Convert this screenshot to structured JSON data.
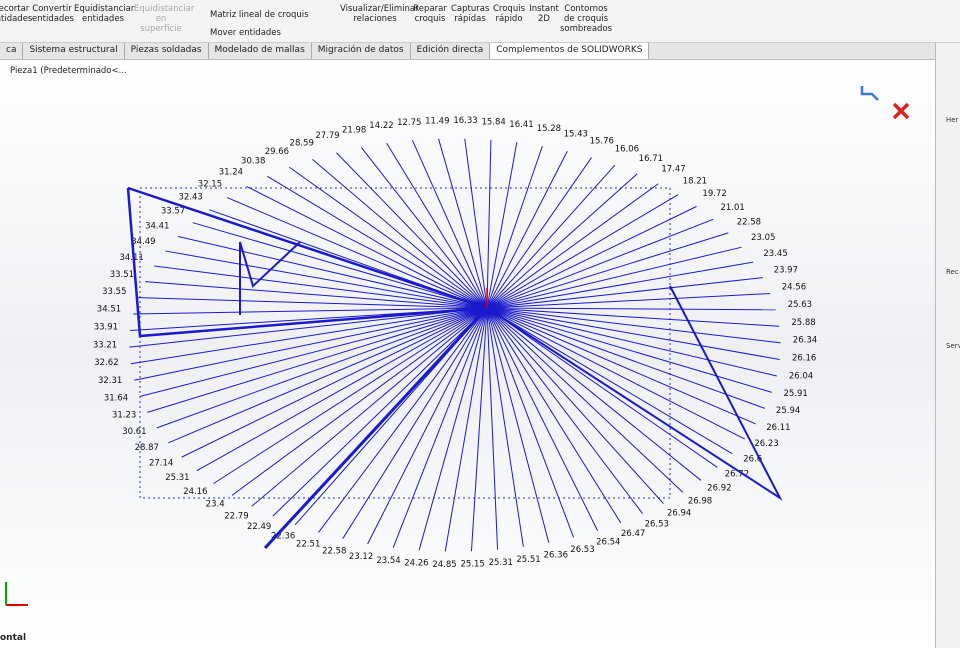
{
  "toolbar": {
    "buttons": [
      "ecortar\nntidades",
      "Convertir\nentidades",
      "Equidistanciar\nentidades",
      "Equidistanciar\nen superficie",
      "Matriz lineal de croquis",
      "Mover entidades",
      "Visualizar/Eliminar\nrelaciones",
      "Reparar\ncroquis",
      "Capturas\nrápidas",
      "Croquis\nrápido",
      "Instant\n2D",
      "Contornos\nde croquis\nsombreados"
    ]
  },
  "tabs": [
    "ca",
    "Sistema estructural",
    "Piezas soldadas",
    "Modelado de mallas",
    "Migración de datos",
    "Edición directa",
    "Complementos de SOLIDWORKS"
  ],
  "tree": {
    "item": "Pieza1  (Predeterminado<..."
  },
  "side_panel": [
    "Her",
    "Rec",
    "Serv"
  ],
  "status": "ontal",
  "sketch": {
    "dimensions": [
      "16.33",
      "15.84",
      "16.41",
      "15.28",
      "15.43",
      "15.76",
      "16.06",
      "16.71",
      "17.47",
      "18.21",
      "19.72",
      "21.01",
      "22.58",
      "23.05",
      "23.45",
      "23.97",
      "24.56",
      "25.63",
      "25.88",
      "26.34",
      "26.16",
      "26.04",
      "25.91",
      "25.94",
      "26.11",
      "26.23",
      "26.6",
      "26.72",
      "26.92",
      "26.98",
      "26.94",
      "26.53",
      "26.47",
      "26.54",
      "26.53",
      "26.36",
      "25.51",
      "25.31",
      "25.15",
      "24.85",
      "24.26",
      "23.54",
      "23.12",
      "22.58",
      "22.51",
      "22.36",
      "22.49",
      "22.79",
      "23.4",
      "24.16",
      "25.31",
      "27.14",
      "28.87",
      "30.61",
      "31.23",
      "31.64",
      "32.31",
      "32.62",
      "33.21",
      "33.91",
      "34.51",
      "33.55",
      "33.51",
      "34.11",
      "34.49",
      "34.41",
      "33.57",
      "32.43",
      "32.15",
      "31.24",
      "30.38",
      "29.66",
      "28.59",
      "27.79",
      "21.98",
      "14.22",
      "12.75",
      "11.49"
    ]
  }
}
